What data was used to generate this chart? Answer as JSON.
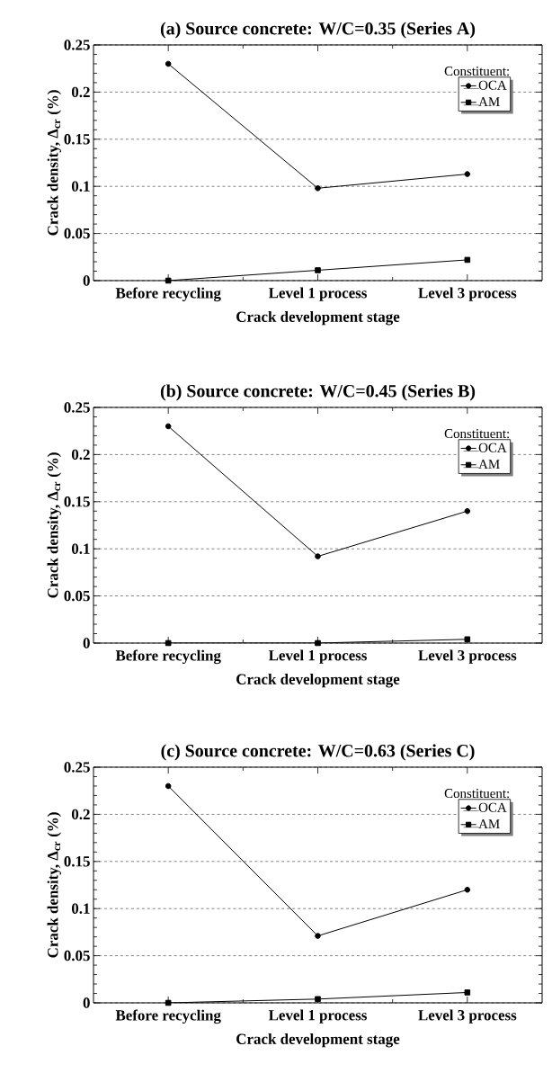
{
  "chart_data": [
    {
      "type": "line",
      "title": "(a) Source concrete: W/C=0.35 (Series A)",
      "xlabel": "Crack development stage",
      "ylabel": "Crack density, Δ$_{cr}$ (%)",
      "categories": [
        "Before recycling",
        "Level 1 process",
        "Level 3 process"
      ],
      "series": [
        {
          "name": "OCA",
          "color": "#000000",
          "marker": "circle",
          "values": [
            0.23,
            0.098,
            0.113
          ]
        },
        {
          "name": "AM",
          "color": "#000000",
          "marker": "square",
          "values": [
            0,
            0.011,
            0.022
          ]
        }
      ],
      "ylim": [
        0,
        0.25
      ],
      "yticks": [
        0,
        0.05,
        0.1,
        0.15,
        0.2,
        0.25
      ],
      "grid": "y",
      "legend": "top right",
      "legend_title": "Constituent:"
    },
    {
      "type": "line",
      "title": "(b) Source concrete: W/C=0.45 (Series B)",
      "xlabel": "Crack development stage",
      "ylabel": "Crack density, Δ$_{cr}$ (%)",
      "categories": [
        "Before recycling",
        "Level 1 process",
        "Level 3 process"
      ],
      "series": [
        {
          "name": "OCA",
          "color": "#000000",
          "marker": "circle",
          "values": [
            0.23,
            0.092,
            0.14
          ]
        },
        {
          "name": "AM",
          "color": "#000000",
          "marker": "square",
          "values": [
            0,
            0,
            0.004
          ]
        }
      ],
      "ylim": [
        0,
        0.25
      ],
      "yticks": [
        0,
        0.05,
        0.1,
        0.15,
        0.2,
        0.25
      ],
      "grid": "y",
      "legend": "top right",
      "legend_title": "Constituent:"
    },
    {
      "type": "line",
      "title": "(c) Source concrete: W/C=0.63 (Series C)",
      "xlabel": "Crack development stage",
      "ylabel": "Crack density, Δ$_{cr}$ (%)",
      "categories": [
        "Before recycling",
        "Level 1 process",
        "Level 3 process"
      ],
      "series": [
        {
          "name": "OCA",
          "color": "#000000",
          "marker": "circle",
          "values": [
            0.23,
            0.071,
            0.12
          ]
        },
        {
          "name": "AM",
          "color": "#000000",
          "marker": "square",
          "values": [
            0,
            0.004,
            0.011
          ]
        }
      ],
      "ylim": [
        0,
        0.25
      ],
      "yticks": [
        0,
        0.05,
        0.1,
        0.15,
        0.2,
        0.25
      ],
      "grid": "y",
      "legend": "top right",
      "legend_title": "Constituent:"
    }
  ]
}
